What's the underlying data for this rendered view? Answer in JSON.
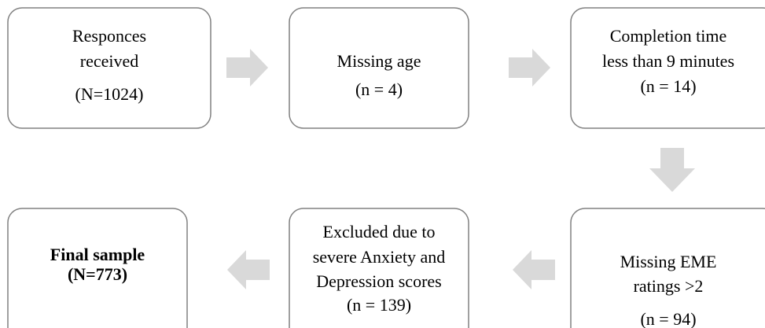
{
  "nodes": [
    {
      "lines": [
        "Responces",
        "received",
        "(N=1024)"
      ]
    },
    {
      "lines": [
        "Missing age",
        "(n = 4)"
      ]
    },
    {
      "lines": [
        "Completion time",
        "less than 9 minutes",
        "(n = 14)"
      ]
    },
    {
      "lines": [
        "Missing EME",
        "ratings >2",
        "(n = 94)"
      ]
    },
    {
      "lines": [
        "Excluded due to",
        "severe Anxiety and",
        "Depression scores",
        "(n = 139)"
      ]
    },
    {
      "lines": [
        "Final sample",
        "(N=773)"
      ]
    }
  ]
}
